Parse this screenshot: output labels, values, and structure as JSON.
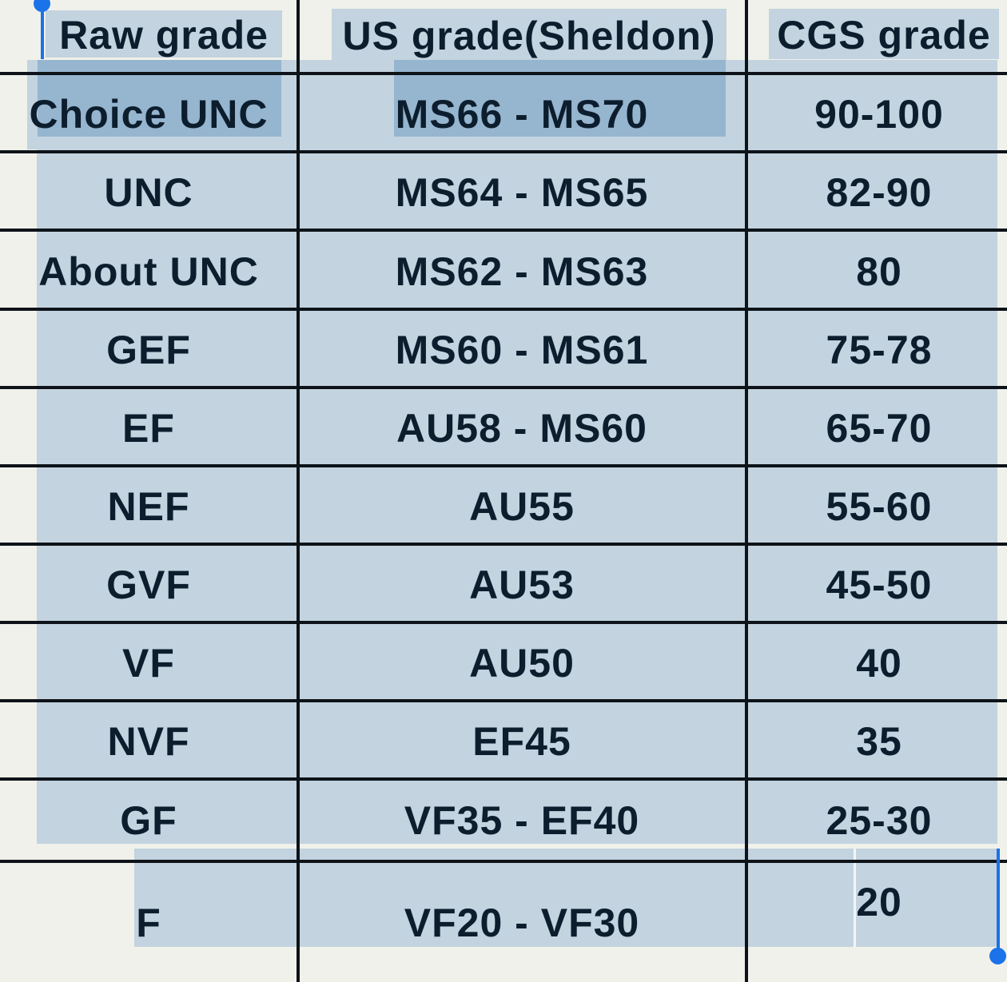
{
  "table": {
    "columns": [
      "Raw grade",
      "US grade(Sheldon)",
      "CGS grade"
    ],
    "rows": [
      {
        "raw": "Choice UNC",
        "us": "MS66 - MS70",
        "cgs": "90-100"
      },
      {
        "raw": "UNC",
        "us": "MS64 - MS65",
        "cgs": "82-90"
      },
      {
        "raw": "About UNC",
        "us": "MS62 - MS63",
        "cgs": "80"
      },
      {
        "raw": "GEF",
        "us": "MS60 - MS61",
        "cgs": "75-78"
      },
      {
        "raw": "EF",
        "us": "AU58 - MS60",
        "cgs": "65-70"
      },
      {
        "raw": "NEF",
        "us": "AU55",
        "cgs": "55-60"
      },
      {
        "raw": "GVF",
        "us": "AU53",
        "cgs": "45-50"
      },
      {
        "raw": "VF",
        "us": "AU50",
        "cgs": "40"
      },
      {
        "raw": "NVF",
        "us": "EF45",
        "cgs": "35"
      },
      {
        "raw": "GF",
        "us": "VF35 - EF40",
        "cgs": "25-30"
      },
      {
        "raw": "F",
        "us": "VF20 - VF30",
        "cgs": "20"
      }
    ]
  },
  "selection": {
    "emphasized_text": [
      "Choice UNC",
      "MS66 - MS70"
    ],
    "start_handle": "text-selection-start",
    "end_handle": "text-selection-end"
  },
  "colors": {
    "background": "#f0f1ea",
    "table_border": "#0d1318",
    "text": "#0c1e2d",
    "highlight_light": "#c3d3df",
    "highlight_dark": "#96b5cf",
    "handle_blue": "#1c72e8"
  }
}
